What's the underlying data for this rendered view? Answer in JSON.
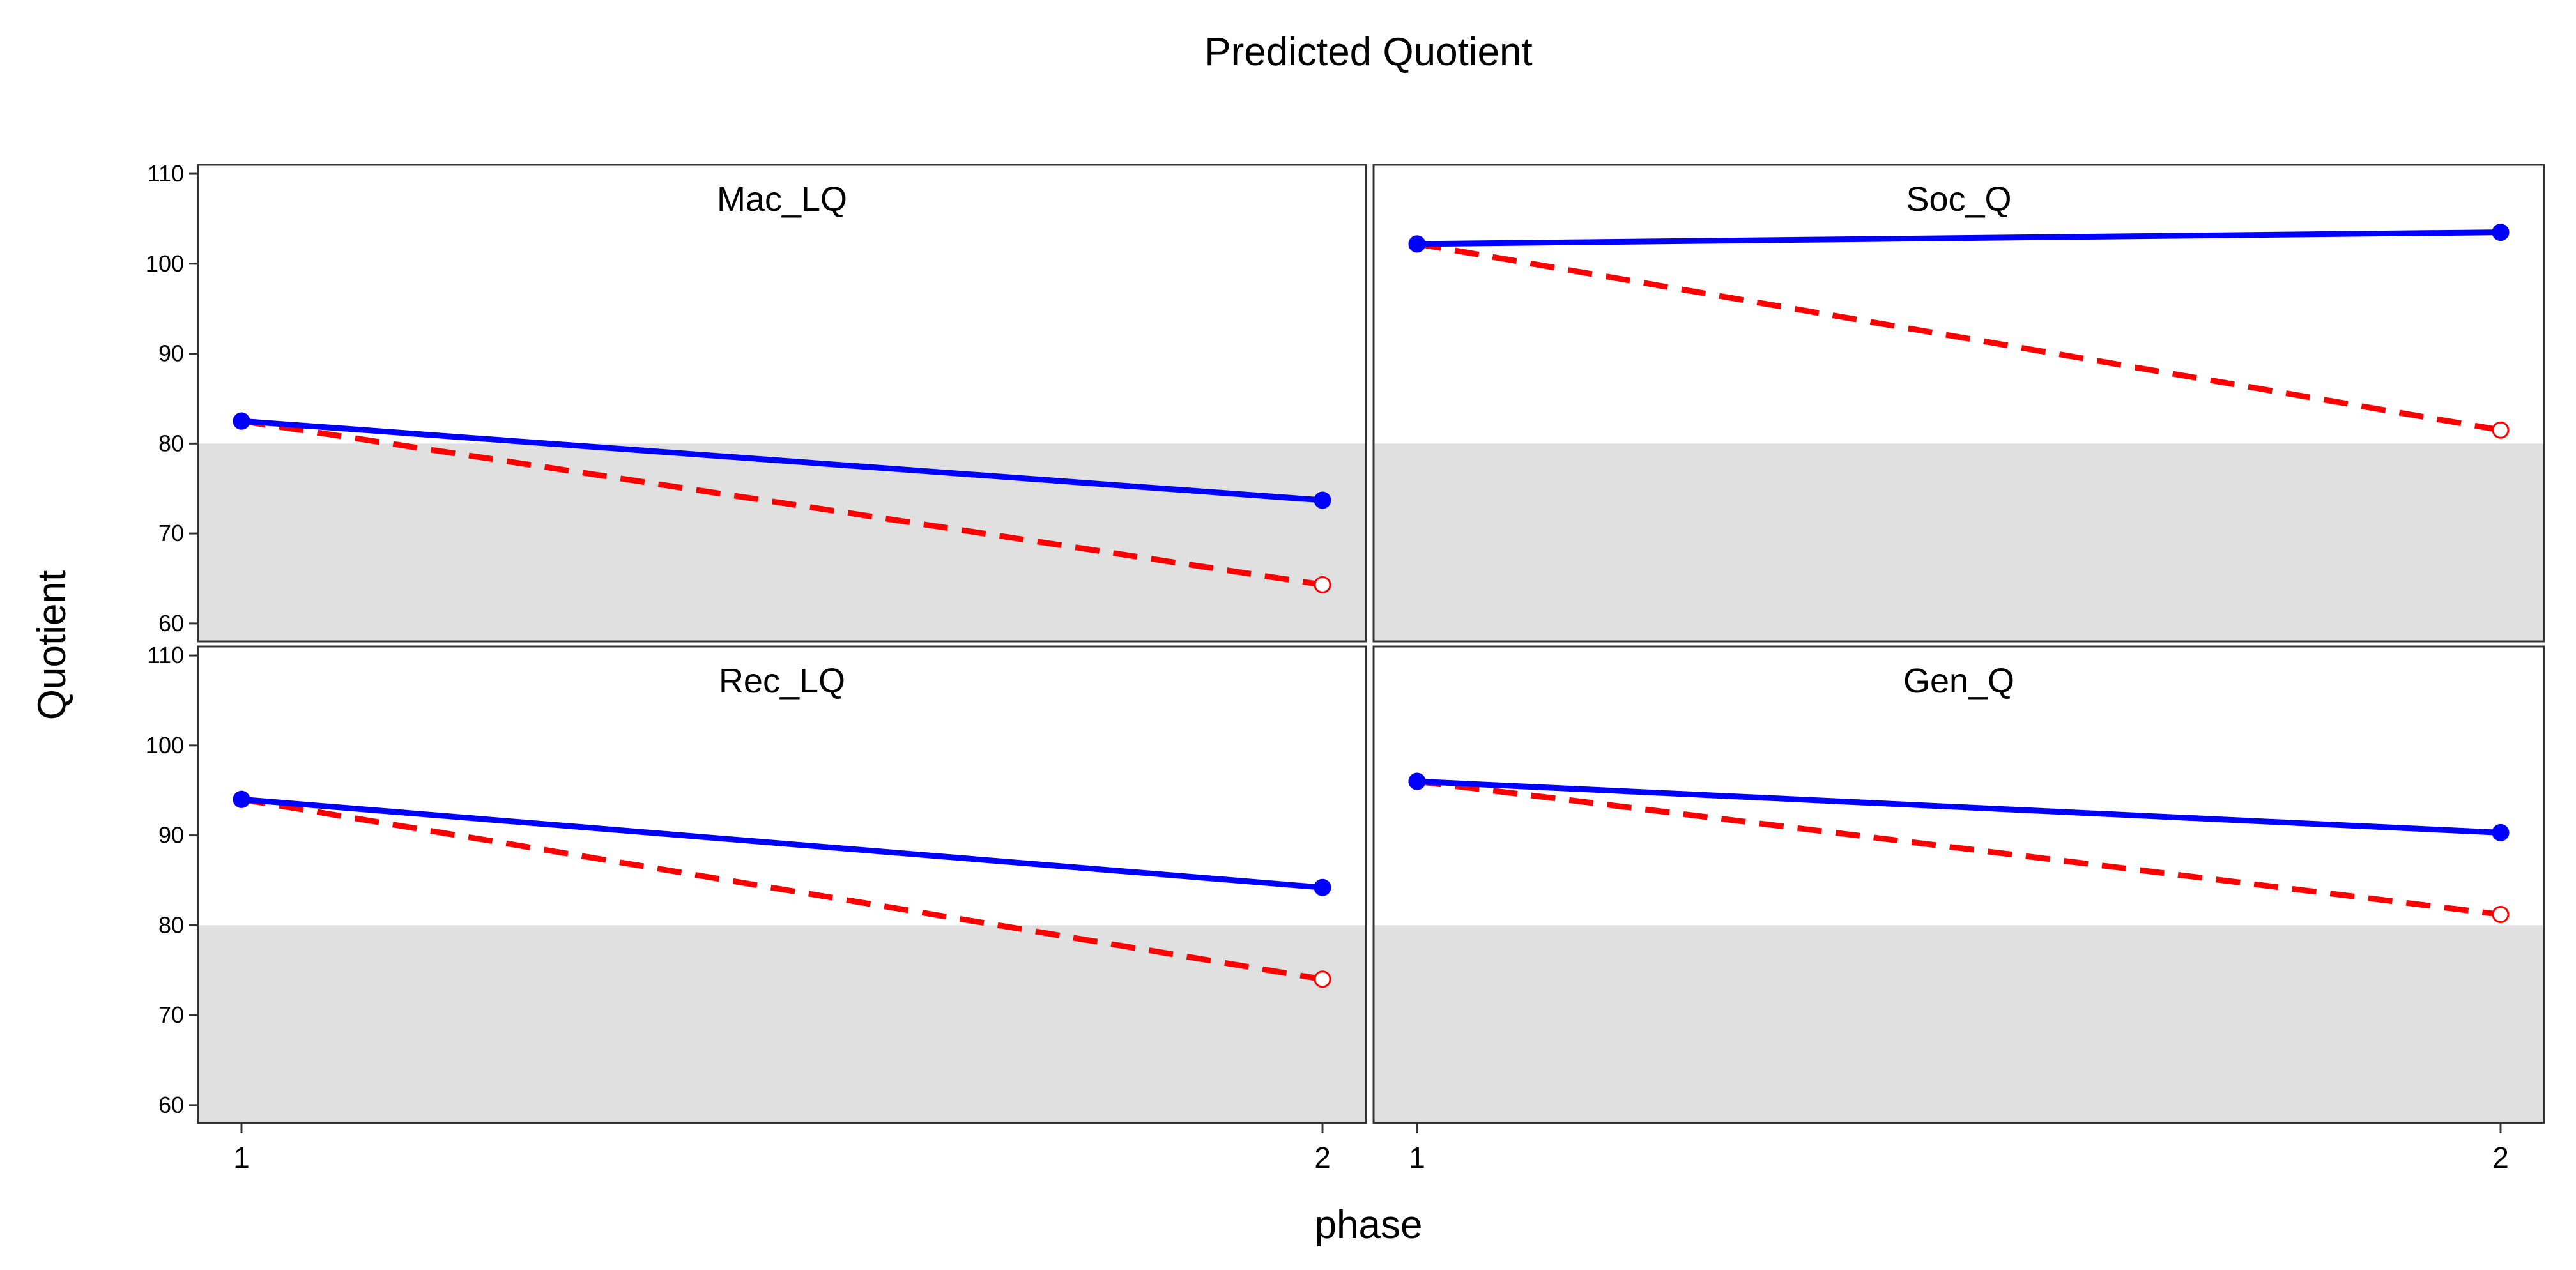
{
  "chart_data": {
    "type": "line",
    "title": "Predicted Quotient",
    "xlabel": "phase",
    "ylabel": "Quotient",
    "x": [
      1,
      2
    ],
    "ylim": [
      58,
      111
    ],
    "yticks": [
      60,
      70,
      80,
      90,
      100,
      110
    ],
    "xticks": [
      1,
      2
    ],
    "shaded_band": {
      "y_from": 58,
      "y_to": 80,
      "color": "#e0e0e0"
    },
    "colors": {
      "solid": "#0000ff",
      "dashed": "#ff0000"
    },
    "panels": [
      {
        "name": "Mac_LQ",
        "series": [
          {
            "style": "solid",
            "values": [
              82.5,
              73.7
            ]
          },
          {
            "style": "dashed",
            "values": [
              82.5,
              64.3
            ]
          }
        ]
      },
      {
        "name": "Soc_Q",
        "series": [
          {
            "style": "solid",
            "values": [
              102.2,
              103.5
            ]
          },
          {
            "style": "dashed",
            "values": [
              102.2,
              81.5
            ]
          }
        ]
      },
      {
        "name": "Rec_LQ",
        "series": [
          {
            "style": "solid",
            "values": [
              94.0,
              84.2
            ]
          },
          {
            "style": "dashed",
            "values": [
              94.0,
              74.0
            ]
          }
        ]
      },
      {
        "name": "Gen_Q",
        "series": [
          {
            "style": "solid",
            "values": [
              96.0,
              90.3
            ]
          },
          {
            "style": "dashed",
            "values": [
              96.0,
              81.2
            ]
          }
        ]
      }
    ]
  }
}
